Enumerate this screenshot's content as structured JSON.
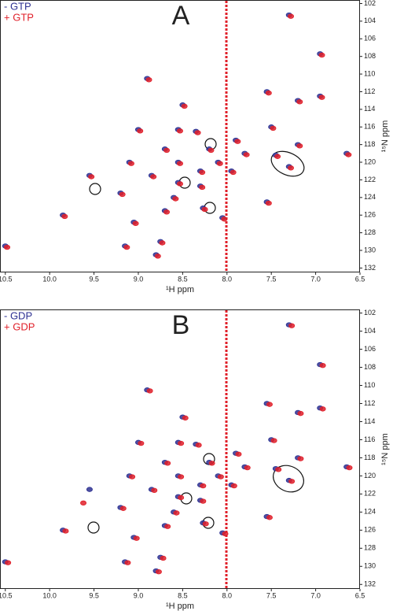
{
  "chart_data": [
    {
      "type": "scatter",
      "title": "A",
      "xlabel": "¹H ppm",
      "ylabel": "¹⁵N ppm",
      "xlim": [
        10.56,
        6.5
      ],
      "ylim": [
        101.6,
        132.5
      ],
      "xticks": [
        10.5,
        {
          "value": 10,
          "label": "10.0"
        },
        9.5,
        {
          "value": 9,
          "label": "9.0"
        },
        8.5,
        {
          "value": 8,
          "label": "8.0"
        },
        7.5,
        {
          "value": 7,
          "label": "7.0"
        },
        6.5
      ],
      "yticks": [
        102,
        104,
        106,
        108,
        110,
        112,
        114,
        116,
        118,
        120,
        122,
        124,
        126,
        128,
        130,
        132
      ],
      "series": [
        {
          "name": "- GTP",
          "color": "#2e3192",
          "x": [
            7.3,
            6.95,
            6.95,
            6.65,
            7.2,
            7.3,
            7.45,
            7.55,
            7.5,
            7.2,
            8.9,
            8.5,
            8.35,
            8.55,
            8.7,
            8.55,
            8.3,
            8.1,
            8.2,
            7.95,
            7.9,
            7.8,
            8.55,
            8.3,
            8.6,
            8.27,
            8.7,
            9.2,
            9.55,
            9.85,
            9.05,
            8.75,
            8.8,
            9.15,
            10.5,
            9.1,
            8.85,
            8.05,
            9.0,
            7.55
          ],
          "values": [
            103.3,
            107.7,
            112.5,
            119.0,
            118.0,
            120.5,
            119.2,
            112.0,
            116.0,
            113.0,
            110.5,
            113.5,
            116.5,
            116.3,
            118.5,
            120.0,
            121.0,
            120.0,
            118.5,
            121.0,
            117.5,
            119.0,
            122.3,
            122.7,
            124.0,
            125.2,
            125.5,
            123.5,
            121.5,
            126.0,
            126.8,
            129.0,
            130.5,
            129.5,
            129.5,
            120.0,
            121.5,
            126.3,
            116.3,
            124.5
          ]
        },
        {
          "name": "+ GTP",
          "color": "#e0202a",
          "x": [
            7.28,
            6.93,
            6.93,
            6.63,
            7.18,
            7.28,
            7.43,
            7.53,
            7.48,
            7.18,
            8.88,
            8.48,
            8.33,
            8.53,
            8.68,
            8.53,
            8.28,
            8.08,
            8.18,
            7.93,
            7.88,
            7.78,
            8.53,
            8.28,
            8.58,
            8.25,
            8.68,
            9.18,
            9.53,
            9.83,
            9.03,
            8.73,
            8.78,
            9.13,
            10.48,
            9.08,
            8.83,
            8.03,
            8.98,
            7.53
          ],
          "values": [
            103.45,
            107.85,
            112.65,
            119.15,
            118.15,
            120.65,
            119.35,
            112.15,
            116.15,
            113.15,
            110.65,
            113.65,
            116.65,
            116.45,
            118.65,
            120.15,
            121.15,
            120.15,
            118.65,
            121.15,
            117.65,
            119.15,
            122.45,
            122.85,
            124.15,
            125.35,
            125.65,
            123.65,
            121.65,
            126.15,
            126.95,
            129.15,
            130.65,
            129.65,
            129.65,
            120.15,
            121.65,
            126.45,
            116.45,
            124.65
          ]
        }
      ]
    },
    {
      "type": "scatter",
      "title": "B",
      "xlabel": "¹H ppm",
      "ylabel": "¹⁵N ppm",
      "xlim": [
        10.56,
        6.5
      ],
      "ylim": [
        101.6,
        132.5
      ],
      "xticks": [
        10.5,
        {
          "value": 10,
          "label": "10.0"
        },
        9.5,
        {
          "value": 9,
          "label": "9.0"
        },
        8.5,
        {
          "value": 8,
          "label": "8.0"
        },
        7.5,
        {
          "value": 7,
          "label": "7.0"
        },
        6.5
      ],
      "yticks": [
        102,
        104,
        106,
        108,
        110,
        112,
        114,
        116,
        118,
        120,
        122,
        124,
        126,
        128,
        130,
        132
      ],
      "series": [
        {
          "name": "- GDP",
          "color": "#2e3192",
          "x": [
            7.3,
            6.95,
            6.95,
            6.65,
            7.2,
            7.3,
            7.45,
            7.55,
            7.5,
            7.2,
            8.9,
            8.5,
            8.35,
            8.55,
            8.7,
            8.55,
            8.3,
            8.1,
            8.2,
            7.95,
            7.9,
            7.8,
            8.55,
            8.3,
            8.6,
            8.27,
            8.7,
            9.2,
            9.55,
            9.85,
            9.05,
            8.75,
            8.8,
            9.15,
            10.5,
            9.1,
            8.85,
            8.05,
            9.0,
            7.55
          ],
          "values": [
            103.3,
            107.7,
            112.5,
            119.0,
            118.0,
            120.5,
            119.2,
            112.0,
            116.0,
            113.0,
            110.5,
            113.5,
            116.5,
            116.3,
            118.5,
            120.0,
            121.0,
            120.0,
            118.5,
            121.0,
            117.5,
            119.0,
            122.3,
            122.7,
            124.0,
            125.2,
            125.5,
            123.5,
            121.5,
            126.0,
            126.8,
            129.0,
            130.5,
            129.5,
            129.5,
            120.0,
            121.5,
            126.3,
            116.3,
            124.5
          ]
        },
        {
          "name": "+ GDP",
          "color": "#e0202a",
          "x": [
            7.27,
            6.92,
            6.92,
            6.62,
            7.17,
            7.27,
            7.42,
            7.52,
            7.47,
            7.17,
            8.87,
            8.47,
            8.32,
            8.52,
            8.67,
            8.52,
            8.27,
            8.07,
            8.17,
            7.92,
            7.87,
            7.77,
            8.52,
            8.27,
            8.57,
            8.24,
            8.67,
            9.17,
            9.62,
            9.82,
            9.02,
            8.72,
            8.77,
            9.12,
            10.47,
            9.07,
            8.82,
            8.02,
            8.97,
            7.52
          ],
          "values": [
            103.4,
            107.8,
            112.6,
            119.1,
            118.1,
            120.6,
            119.3,
            112.1,
            116.1,
            113.1,
            110.6,
            113.6,
            116.6,
            116.4,
            118.6,
            120.1,
            121.1,
            120.1,
            118.6,
            121.1,
            117.6,
            119.1,
            122.4,
            122.8,
            124.1,
            125.3,
            125.6,
            123.6,
            123.0,
            126.1,
            126.9,
            129.1,
            130.6,
            129.6,
            129.6,
            120.1,
            121.6,
            126.4,
            116.4,
            124.6
          ]
        }
      ]
    }
  ]
}
